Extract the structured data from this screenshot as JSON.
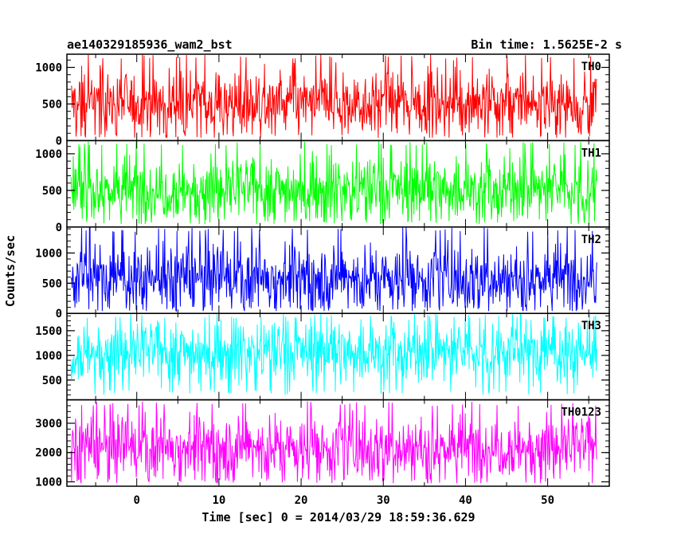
{
  "chart_data": {
    "type": "line",
    "title": "ae140329185936_wam2_bst",
    "subtitle": "Bin time: 1.5625E-2 s",
    "xlabel": "Time [sec] 0 = 2014/03/29 18:59:36.629",
    "ylabel": "Counts/sec",
    "xlim": [
      -8.5,
      57.5
    ],
    "x_range_data": [
      -8,
      56
    ],
    "x_ticks": [
      0,
      10,
      20,
      30,
      40,
      50
    ],
    "x_tick_labels": [
      "0",
      "10",
      "20",
      "30",
      "40",
      "50"
    ],
    "grid": false,
    "panels": [
      {
        "name": "TH0",
        "color": "#ff0000",
        "ylim": [
          0,
          1180
        ],
        "y_ticks": [
          0,
          500,
          1000
        ],
        "y_tick_labels": [
          "0",
          "500",
          "1000"
        ],
        "mean": 520,
        "low": 40,
        "high": 1180
      },
      {
        "name": "TH1",
        "color": "#00ff00",
        "ylim": [
          0,
          1180
        ],
        "y_ticks": [
          0,
          500,
          1000
        ],
        "y_tick_labels": [
          "0",
          "500",
          "1000"
        ],
        "mean": 520,
        "low": 40,
        "high": 1180
      },
      {
        "name": "TH2",
        "color": "#0000ff",
        "ylim": [
          0,
          1430
        ],
        "y_ticks": [
          0,
          500,
          1000
        ],
        "y_tick_labels": [
          "0",
          "500",
          "1000"
        ],
        "mean": 600,
        "low": 40,
        "high": 1430
      },
      {
        "name": "TH3",
        "color": "#00ffff",
        "ylim": [
          100,
          1850
        ],
        "y_ticks": [
          500,
          1000,
          1500
        ],
        "y_tick_labels": [
          "500",
          "1000",
          "1500"
        ],
        "mean": 1080,
        "low": 200,
        "high": 1850
      },
      {
        "name": "TH0123",
        "color": "#ff00ff",
        "ylim": [
          850,
          3800
        ],
        "y_ticks": [
          1000,
          2000,
          3000
        ],
        "y_tick_labels": [
          "1000",
          "2000",
          "3000"
        ],
        "mean": 2200,
        "low": 950,
        "high": 3750
      }
    ]
  }
}
